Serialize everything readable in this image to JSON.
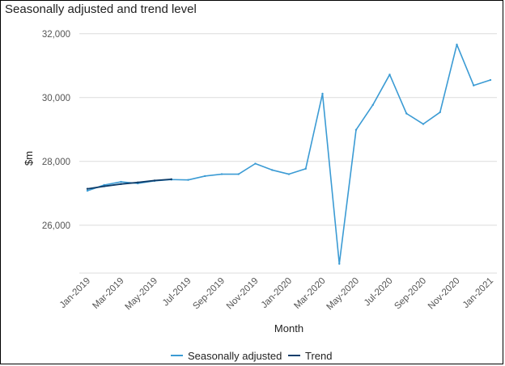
{
  "chart_data": {
    "type": "line",
    "title": "Seasonally adjusted and trend level",
    "xlabel": "Month",
    "ylabel": "$m",
    "ylim": [
      24500,
      32500
    ],
    "yticks": [
      26000,
      28000,
      30000,
      32000
    ],
    "ytick_labels": [
      "26,000",
      "28,000",
      "30,000",
      "32,000"
    ],
    "grid": true,
    "legend_position": "bottom",
    "categories": [
      "Jan-2019",
      "Feb-2019",
      "Mar-2019",
      "Apr-2019",
      "May-2019",
      "Jun-2019",
      "Jul-2019",
      "Aug-2019",
      "Sep-2019",
      "Oct-2019",
      "Nov-2019",
      "Dec-2019",
      "Jan-2020",
      "Feb-2020",
      "Mar-2020",
      "Apr-2020",
      "May-2020",
      "Jun-2020",
      "Jul-2020",
      "Aug-2020",
      "Sep-2020",
      "Oct-2020",
      "Nov-2020",
      "Dec-2020",
      "Jan-2021"
    ],
    "x_tick_labels": [
      "Jan-2019",
      "Mar-2019",
      "May-2019",
      "Jul-2019",
      "Sep-2019",
      "Nov-2019",
      "Jan-2020",
      "Mar-2020",
      "May-2020",
      "Jul-2020",
      "Sep-2020",
      "Nov-2020",
      "Jan-2021"
    ],
    "series": [
      {
        "name": "Seasonally adjusted",
        "color": "#3b9bd4",
        "values": [
          27080,
          27260,
          27360,
          27310,
          27390,
          27430,
          27420,
          27540,
          27600,
          27600,
          27930,
          27730,
          27600,
          27770,
          30120,
          24790,
          28990,
          29770,
          30720,
          29500,
          29170,
          29540,
          31660,
          30380,
          30550
        ]
      },
      {
        "name": "Trend",
        "color": "#0d3d6b",
        "values": [
          27140,
          27220,
          27290,
          27340,
          27400,
          27440,
          null,
          null,
          null,
          null,
          null,
          null,
          null,
          null,
          null,
          null,
          null,
          null,
          null,
          null,
          null,
          null,
          null,
          null,
          null
        ]
      }
    ]
  }
}
